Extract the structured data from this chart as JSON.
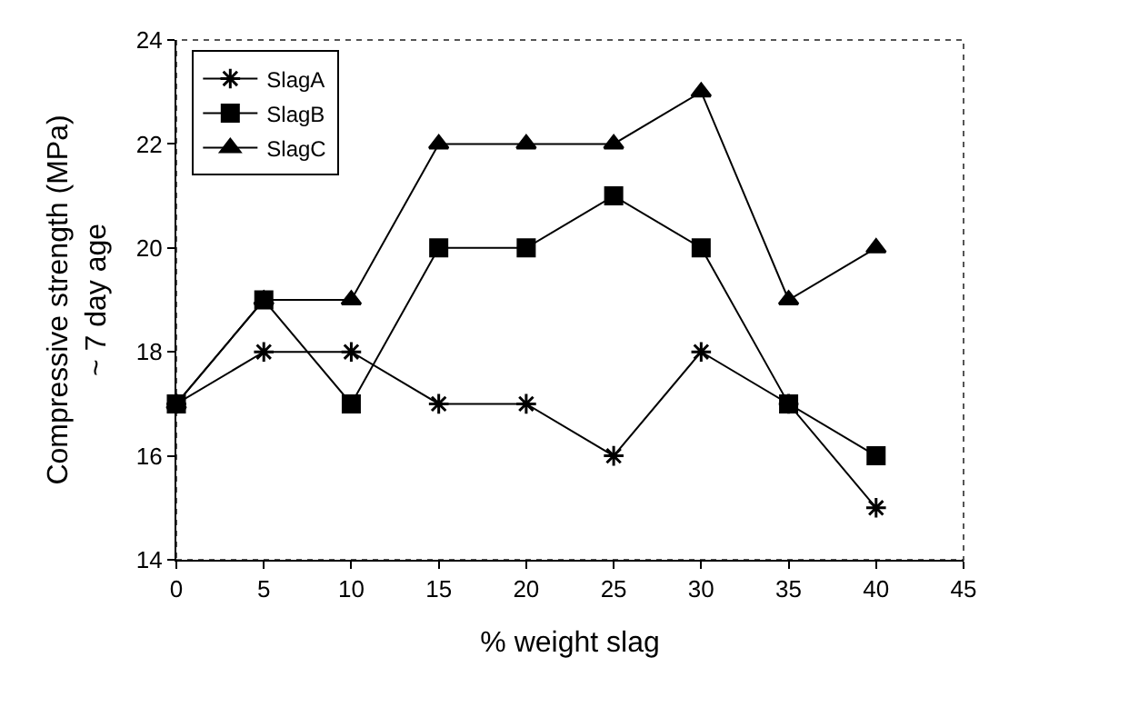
{
  "chart_data": {
    "type": "line",
    "xlabel": "% weight slag",
    "ylabel": "Compressive strength (MPa)\n~ 7 day age",
    "x": [
      0,
      5,
      10,
      15,
      20,
      25,
      30,
      35,
      40
    ],
    "series": [
      {
        "name": "SlagA",
        "color": "#000000",
        "marker": "cross",
        "values": [
          17,
          18,
          18,
          17,
          17,
          16,
          18,
          17,
          15
        ]
      },
      {
        "name": "SlagB",
        "color": "#000000",
        "marker": "square",
        "values": [
          17,
          19,
          17,
          20,
          20,
          21,
          20,
          17,
          16
        ]
      },
      {
        "name": "SlagC",
        "color": "#000000",
        "marker": "triangle",
        "values": [
          17,
          19,
          19,
          22,
          22,
          22,
          23,
          19,
          20
        ]
      }
    ],
    "xlim": [
      0,
      45
    ],
    "xticks": [
      0,
      5,
      10,
      15,
      20,
      25,
      30,
      35,
      40,
      45
    ],
    "ylim": [
      14,
      24
    ],
    "yticks": [
      14,
      16,
      18,
      20,
      22,
      24
    ],
    "grid": false,
    "legend": "top left",
    "line_style": "solid"
  }
}
